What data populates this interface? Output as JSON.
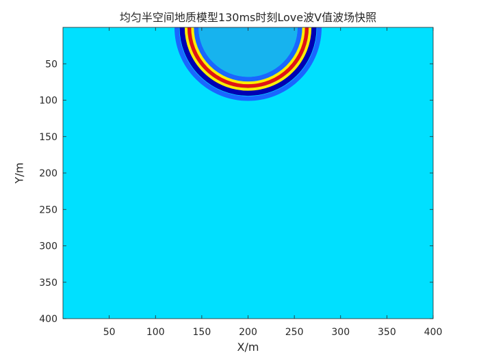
{
  "chart_data": {
    "type": "heatmap",
    "title": "均匀半空间地质模型130ms时刻Love波V值波场快照",
    "xlabel": "X/m",
    "ylabel": "Y/m",
    "xlim": [
      0,
      400
    ],
    "ylim": [
      400,
      0
    ],
    "y_axis_reversed": true,
    "x_ticks": [
      50,
      100,
      150,
      200,
      250,
      300,
      350,
      400
    ],
    "y_ticks": [
      50,
      100,
      150,
      200,
      250,
      300,
      350,
      400
    ],
    "grid": false,
    "colormap": "jet",
    "background_value_color": "#00e0ff",
    "wavefront": {
      "shape": "semicircle",
      "source_x": 200,
      "source_y": 0,
      "rings": [
        {
          "radius_m": 56,
          "color": "#1a66ff",
          "width_m": 5
        },
        {
          "radius_m": 60,
          "color": "#ffee00",
          "width_m": 3
        },
        {
          "radius_m": 63,
          "color": "#e01414",
          "width_m": 5
        },
        {
          "radius_m": 67,
          "color": "#ffee00",
          "width_m": 3
        },
        {
          "radius_m": 71,
          "color": "#0000b3",
          "width_m": 6
        },
        {
          "radius_m": 77,
          "color": "#1a66ff",
          "width_m": 5
        }
      ],
      "inner_color": "#17c3f2"
    }
  }
}
